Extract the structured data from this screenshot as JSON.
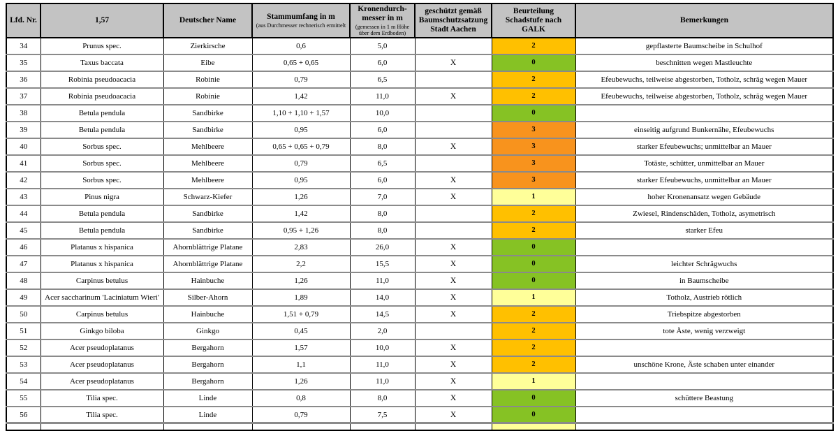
{
  "table": {
    "columns": [
      {
        "label": "Lfd. Nr.",
        "sub": ""
      },
      {
        "label": "1,57",
        "sub": ""
      },
      {
        "label": "Deutscher Name",
        "sub": ""
      },
      {
        "label": "Stammumfang in m",
        "sub": "(aus Durchmesser rechnerisch ermittelt"
      },
      {
        "label": "Kronendurch-messer in m",
        "sub": "(gemessen in 1 m Höhe über dem Erdboden)"
      },
      {
        "label": "geschützt gemäß Baumschutzsatzung Stadt Aachen",
        "sub": ""
      },
      {
        "label": "Beurteilung Schadstufe nach GALK",
        "sub": ""
      },
      {
        "label": "Bemerkungen",
        "sub": ""
      }
    ],
    "schadstufe_colors": {
      "0": "#86c224",
      "1": "#ffff99",
      "2": "#ffc000",
      "3": "#f8931d"
    },
    "rows": [
      {
        "nr": "34",
        "botanical": "Prunus spec.",
        "german": "Zierkirsche",
        "stamm": "0,6",
        "krone": "5,0",
        "geschuetzt": "",
        "schadstufe": "2",
        "bemerkung": "gepflasterte Baumscheibe in Schulhof"
      },
      {
        "nr": "35",
        "botanical": "Taxus baccata",
        "german": "Eibe",
        "stamm": "0,65 + 0,65",
        "krone": "6,0",
        "geschuetzt": "X",
        "schadstufe": "0",
        "bemerkung": "beschnitten wegen Mastleuchte"
      },
      {
        "nr": "36",
        "botanical": "Robinia pseudoacacia",
        "german": "Robinie",
        "stamm": "0,79",
        "krone": "6,5",
        "geschuetzt": "",
        "schadstufe": "2",
        "bemerkung": "Efeubewuchs, teilweise abgestorben, Totholz, schräg wegen Mauer"
      },
      {
        "nr": "37",
        "botanical": "Robinia pseudoacacia",
        "german": "Robinie",
        "stamm": "1,42",
        "krone": "11,0",
        "geschuetzt": "X",
        "schadstufe": "2",
        "bemerkung": "Efeubewuchs, teilweise abgestorben, Totholz, schräg wegen Mauer"
      },
      {
        "nr": "38",
        "botanical": "Betula pendula",
        "german": "Sandbirke",
        "stamm": "1,10 + 1,10 + 1,57",
        "krone": "10,0",
        "geschuetzt": "",
        "schadstufe": "0",
        "bemerkung": ""
      },
      {
        "nr": "39",
        "botanical": "Betula pendula",
        "german": "Sandbirke",
        "stamm": "0,95",
        "krone": "6,0",
        "geschuetzt": "",
        "schadstufe": "3",
        "bemerkung": "einseitig aufgrund Bunkernähe, Efeubewuchs"
      },
      {
        "nr": "40",
        "botanical": "Sorbus spec.",
        "german": "Mehlbeere",
        "stamm": "0,65 + 0,65 + 0,79",
        "krone": "8,0",
        "geschuetzt": "X",
        "schadstufe": "3",
        "bemerkung": "starker Efeubewuchs; unmittelbar an Mauer"
      },
      {
        "nr": "41",
        "botanical": "Sorbus spec.",
        "german": "Mehlbeere",
        "stamm": "0,79",
        "krone": "6,5",
        "geschuetzt": "",
        "schadstufe": "3",
        "bemerkung": "Totäste, schütter, unmittelbar an Mauer"
      },
      {
        "nr": "42",
        "botanical": "Sorbus spec.",
        "german": "Mehlbeere",
        "stamm": "0,95",
        "krone": "6,0",
        "geschuetzt": "X",
        "schadstufe": "3",
        "bemerkung": "starker Efeubewuchs, unmittelbar an Mauer"
      },
      {
        "nr": "43",
        "botanical": "Pinus nigra",
        "german": "Schwarz-Kiefer",
        "stamm": "1,26",
        "krone": "7,0",
        "geschuetzt": "X",
        "schadstufe": "1",
        "bemerkung": "hoher Kronenansatz wegen Gebäude"
      },
      {
        "nr": "44",
        "botanical": "Betula pendula",
        "german": "Sandbirke",
        "stamm": "1,42",
        "krone": "8,0",
        "geschuetzt": "",
        "schadstufe": "2",
        "bemerkung": "Zwiesel, Rindenschäden, Totholz, asymetrisch"
      },
      {
        "nr": "45",
        "botanical": "Betula pendula",
        "german": "Sandbirke",
        "stamm": "0,95 + 1,26",
        "krone": "8,0",
        "geschuetzt": "",
        "schadstufe": "2",
        "bemerkung": "starker Efeu"
      },
      {
        "nr": "46",
        "botanical": "Platanus x hispanica",
        "german": "Ahornblättrige Platane",
        "stamm": "2,83",
        "krone": "26,0",
        "geschuetzt": "X",
        "schadstufe": "0",
        "bemerkung": ""
      },
      {
        "nr": "47",
        "botanical": "Platanus x hispanica",
        "german": "Ahornblättrige Platane",
        "stamm": "2,2",
        "krone": "15,5",
        "geschuetzt": "X",
        "schadstufe": "0",
        "bemerkung": "leichter Schrägwuchs"
      },
      {
        "nr": "48",
        "botanical": "Carpinus betulus",
        "german": "Hainbuche",
        "stamm": "1,26",
        "krone": "11,0",
        "geschuetzt": "X",
        "schadstufe": "0",
        "bemerkung": "in Baumscheibe"
      },
      {
        "nr": "49",
        "botanical": "Acer saccharinum 'Laciniatum Wieri'",
        "german": "Silber-Ahorn",
        "stamm": "1,89",
        "krone": "14,0",
        "geschuetzt": "X",
        "schadstufe": "1",
        "bemerkung": "Totholz, Austrieb rötlich"
      },
      {
        "nr": "50",
        "botanical": "Carpinus betulus",
        "german": "Hainbuche",
        "stamm": "1,51 + 0,79",
        "krone": "14,5",
        "geschuetzt": "X",
        "schadstufe": "2",
        "bemerkung": "Triebspitze abgestorben"
      },
      {
        "nr": "51",
        "botanical": "Ginkgo biloba",
        "german": "Ginkgo",
        "stamm": "0,45",
        "krone": "2,0",
        "geschuetzt": "",
        "schadstufe": "2",
        "bemerkung": "tote Äste, wenig verzweigt"
      },
      {
        "nr": "52",
        "botanical": "Acer pseudoplatanus",
        "german": "Bergahorn",
        "stamm": "1,57",
        "krone": "10,0",
        "geschuetzt": "X",
        "schadstufe": "2",
        "bemerkung": ""
      },
      {
        "nr": "53",
        "botanical": "Acer pseudoplatanus",
        "german": "Bergahorn",
        "stamm": "1,1",
        "krone": "11,0",
        "geschuetzt": "X",
        "schadstufe": "2",
        "bemerkung": "unschöne Krone, Äste schaben unter einander"
      },
      {
        "nr": "54",
        "botanical": "Acer pseudoplatanus",
        "german": "Bergahorn",
        "stamm": "1,26",
        "krone": "11,0",
        "geschuetzt": "X",
        "schadstufe": "1",
        "bemerkung": ""
      },
      {
        "nr": "55",
        "botanical": "Tilia spec.",
        "german": "Linde",
        "stamm": "0,8",
        "krone": "8,0",
        "geschuetzt": "X",
        "schadstufe": "0",
        "bemerkung": "schüttere Beastung"
      },
      {
        "nr": "56",
        "botanical": "Tilia spec.",
        "german": "Linde",
        "stamm": "0,79",
        "krone": "7,5",
        "geschuetzt": "X",
        "schadstufe": "0",
        "bemerkung": ""
      }
    ],
    "partial_next_row": {
      "schadstufe": "1"
    }
  }
}
